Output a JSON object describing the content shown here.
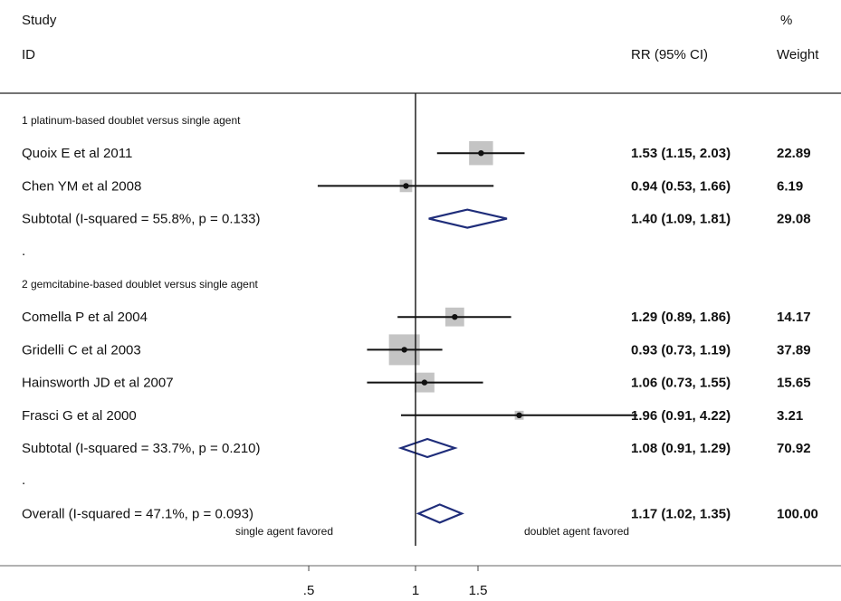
{
  "chart_data": {
    "type": "forest",
    "header": {
      "study_line1": "Study",
      "study_line2": "ID",
      "rr": "RR (95% CI)",
      "weight_line1": "%",
      "weight_line2": "Weight"
    },
    "x_scale": "log",
    "xlim": [
      0.4,
      4.22
    ],
    "xticks": [
      {
        "value": 0.5,
        "label": ".5"
      },
      {
        "value": 1,
        "label": "1"
      },
      {
        "value": 1.5,
        "label": "1.5"
      }
    ],
    "null_line": 1,
    "favored_left": "single agent favored",
    "favored_right": "doublet agent favored",
    "rows": [
      {
        "kind": "group",
        "label": "1 platinum-based doublet versus single agent"
      },
      {
        "kind": "study",
        "label": "Quoix E et al 2011",
        "est": 1.53,
        "lo": 1.15,
        "hi": 2.03,
        "weight": 22.89,
        "ci": "1.53 (1.15, 2.03)",
        "w": "22.89"
      },
      {
        "kind": "study",
        "label": "Chen YM et al 2008",
        "est": 0.94,
        "lo": 0.53,
        "hi": 1.66,
        "weight": 6.19,
        "ci": "0.94 (0.53, 1.66)",
        "w": "6.19"
      },
      {
        "kind": "subtotal",
        "label": "Subtotal  (I-squared = 55.8%, p = 0.133)",
        "est": 1.4,
        "lo": 1.09,
        "hi": 1.81,
        "ci": "1.40 (1.09, 1.81)",
        "w": "29.08"
      },
      {
        "kind": "dot",
        "label": "."
      },
      {
        "kind": "group",
        "label": "2 gemcitabine-based doublet versus single agent"
      },
      {
        "kind": "study",
        "label": "Comella P et al 2004",
        "est": 1.29,
        "lo": 0.89,
        "hi": 1.86,
        "weight": 14.17,
        "ci": "1.29 (0.89, 1.86)",
        "w": "14.17"
      },
      {
        "kind": "study",
        "label": "Gridelli C et al 2003",
        "est": 0.93,
        "lo": 0.73,
        "hi": 1.19,
        "weight": 37.89,
        "ci": "0.93 (0.73, 1.19)",
        "w": "37.89"
      },
      {
        "kind": "study",
        "label": "Hainsworth JD et al 2007",
        "est": 1.06,
        "lo": 0.73,
        "hi": 1.55,
        "weight": 15.65,
        "ci": "1.06 (0.73, 1.55)",
        "w": "15.65"
      },
      {
        "kind": "study",
        "label": "Frasci G et al 2000",
        "est": 1.96,
        "lo": 0.91,
        "hi": 4.22,
        "weight": 3.21,
        "ci": "1.96 (0.91, 4.22)",
        "w": "3.21"
      },
      {
        "kind": "subtotal",
        "label": "Subtotal  (I-squared = 33.7%, p = 0.210)",
        "est": 1.08,
        "lo": 0.91,
        "hi": 1.29,
        "ci": "1.08 (0.91, 1.29)",
        "w": "70.92"
      },
      {
        "kind": "dot",
        "label": "."
      },
      {
        "kind": "overall",
        "label": "Overall  (I-squared = 47.1%, p = 0.093)",
        "est": 1.17,
        "lo": 1.02,
        "hi": 1.35,
        "ci": "1.17 (1.02, 1.35)",
        "w": "100.00"
      }
    ],
    "colors": {
      "diamond": "#1f2d7a",
      "box": "#c4c4c4",
      "line": "#111111"
    }
  }
}
